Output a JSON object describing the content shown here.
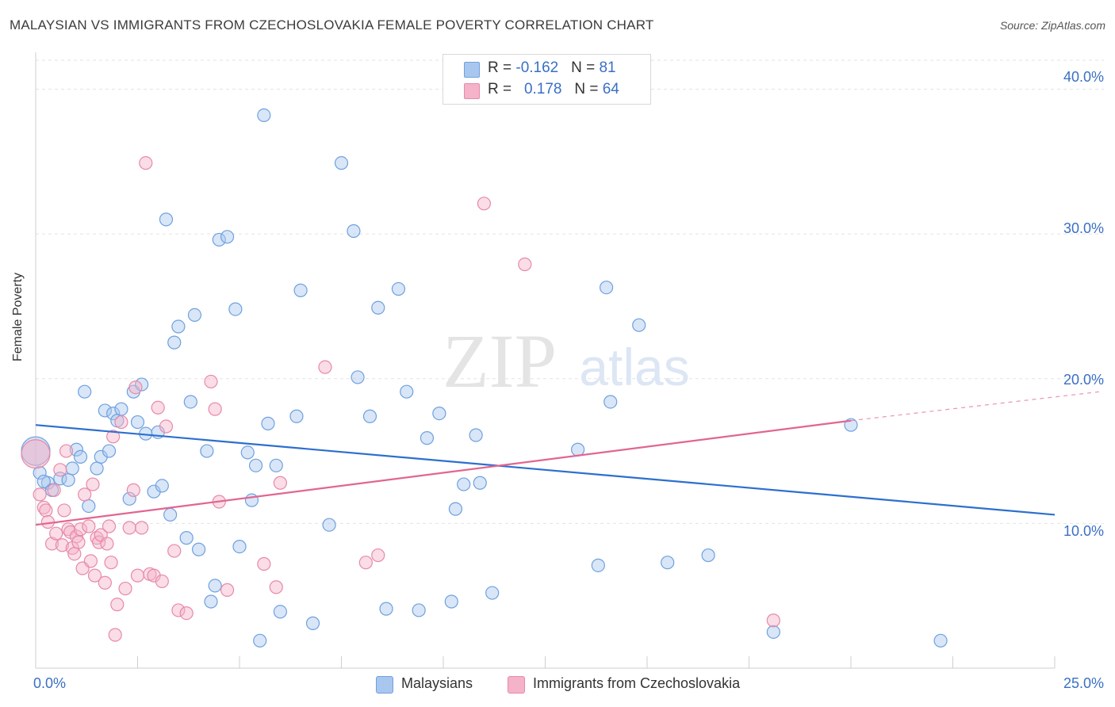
{
  "title": "MALAYSIAN VS IMMIGRANTS FROM CZECHOSLOVAKIA FEMALE POVERTY CORRELATION CHART",
  "source": "Source: ZipAtlas.com",
  "watermark": {
    "zip": "ZIP",
    "atlas": "atlas"
  },
  "legend_box": {
    "rows": [
      {
        "r_label": "R = ",
        "r_value": "-0.162",
        "n_label": "N = ",
        "n_value": "81",
        "color": "#a9c7ee"
      },
      {
        "r_label": "R = ",
        "r_value": "0.178",
        "n_label": "N = ",
        "n_value": "64",
        "color": "#f4b3c8"
      }
    ]
  },
  "bottom_legend": [
    {
      "label": "Malaysians",
      "color": "#a9c7ee"
    },
    {
      "label": "Immigrants from Czechoslovakia",
      "color": "#f4b3c8"
    }
  ],
  "chart_data": {
    "type": "scatter",
    "title": "MALAYSIAN VS IMMIGRANTS FROM CZECHOSLOVAKIA FEMALE POVERTY CORRELATION CHART",
    "xlabel": "",
    "ylabel": "Female Poverty",
    "xlim": [
      0,
      25
    ],
    "ylim": [
      0,
      42
    ],
    "x_tick_labels": [
      "0.0%",
      "25.0%"
    ],
    "y_tick_labels": [
      "10.0%",
      "20.0%",
      "30.0%",
      "40.0%"
    ],
    "y_ticks": [
      10,
      20,
      30,
      40
    ],
    "grid": true,
    "legend_position": "top-center",
    "series": [
      {
        "name": "Malaysians",
        "color": "#6fa0e0",
        "fill": "#a9c7ee",
        "trend": {
          "x": [
            0,
            25
          ],
          "y": [
            16.8,
            10.6
          ],
          "color": "#2d6fcf"
        },
        "points": [
          [
            0.0,
            15.0
          ],
          [
            0.1,
            13.5
          ],
          [
            0.3,
            12.8
          ],
          [
            0.4,
            12.3
          ],
          [
            0.6,
            13.1
          ],
          [
            0.8,
            13.0
          ],
          [
            0.9,
            13.8
          ],
          [
            1.0,
            15.1
          ],
          [
            1.1,
            14.6
          ],
          [
            1.2,
            19.1
          ],
          [
            1.3,
            11.2
          ],
          [
            1.5,
            13.8
          ],
          [
            1.6,
            14.6
          ],
          [
            1.7,
            17.8
          ],
          [
            1.8,
            15.0
          ],
          [
            1.9,
            17.6
          ],
          [
            2.0,
            17.1
          ],
          [
            2.1,
            17.9
          ],
          [
            2.3,
            11.7
          ],
          [
            2.4,
            19.1
          ],
          [
            2.5,
            17.0
          ],
          [
            2.6,
            19.6
          ],
          [
            2.7,
            16.2
          ],
          [
            2.9,
            12.2
          ],
          [
            3.0,
            16.3
          ],
          [
            3.1,
            12.6
          ],
          [
            3.2,
            31.0
          ],
          [
            3.3,
            10.6
          ],
          [
            3.4,
            22.5
          ],
          [
            3.5,
            23.6
          ],
          [
            3.7,
            9.0
          ],
          [
            3.8,
            18.4
          ],
          [
            3.9,
            24.4
          ],
          [
            4.0,
            8.2
          ],
          [
            4.2,
            15.0
          ],
          [
            4.3,
            4.6
          ],
          [
            4.4,
            5.7
          ],
          [
            4.5,
            29.6
          ],
          [
            4.7,
            29.8
          ],
          [
            4.9,
            24.8
          ],
          [
            5.0,
            8.4
          ],
          [
            5.2,
            14.9
          ],
          [
            5.3,
            11.6
          ],
          [
            5.4,
            14.0
          ],
          [
            5.5,
            1.9
          ],
          [
            5.6,
            38.2
          ],
          [
            5.7,
            16.9
          ],
          [
            5.9,
            14.0
          ],
          [
            6.0,
            3.9
          ],
          [
            6.4,
            17.4
          ],
          [
            6.5,
            26.1
          ],
          [
            6.8,
            3.1
          ],
          [
            7.2,
            9.9
          ],
          [
            7.5,
            34.9
          ],
          [
            7.8,
            30.2
          ],
          [
            7.9,
            20.1
          ],
          [
            8.2,
            17.4
          ],
          [
            8.4,
            24.9
          ],
          [
            8.6,
            4.1
          ],
          [
            8.9,
            26.2
          ],
          [
            9.1,
            19.1
          ],
          [
            9.4,
            4.0
          ],
          [
            9.6,
            15.9
          ],
          [
            9.9,
            17.6
          ],
          [
            10.2,
            4.6
          ],
          [
            10.3,
            11.0
          ],
          [
            10.5,
            12.7
          ],
          [
            10.8,
            16.1
          ],
          [
            10.9,
            12.8
          ],
          [
            11.2,
            5.2
          ],
          [
            13.3,
            15.1
          ],
          [
            13.8,
            7.1
          ],
          [
            14.0,
            26.3
          ],
          [
            14.1,
            18.4
          ],
          [
            14.8,
            23.7
          ],
          [
            15.5,
            7.3
          ],
          [
            16.5,
            7.8
          ],
          [
            18.1,
            2.5
          ],
          [
            20.0,
            16.8
          ],
          [
            22.2,
            1.9
          ],
          [
            0.2,
            12.9
          ]
        ]
      },
      {
        "name": "Immigrants from Czechoslovakia",
        "color": "#e889a8",
        "fill": "#f4b3c8",
        "trend": {
          "x": [
            0,
            20.0
          ],
          "y": [
            9.9,
            17.1
          ],
          "color": "#e26591",
          "dashed_extension": {
            "x": [
              20.0,
              25
            ],
            "y": [
              17.1,
              18.9
            ]
          }
        },
        "points": [
          [
            0.0,
            14.8
          ],
          [
            0.1,
            12.0
          ],
          [
            0.2,
            11.1
          ],
          [
            0.25,
            10.9
          ],
          [
            0.3,
            10.1
          ],
          [
            0.4,
            8.6
          ],
          [
            0.45,
            12.3
          ],
          [
            0.5,
            9.3
          ],
          [
            0.6,
            13.7
          ],
          [
            0.65,
            8.5
          ],
          [
            0.7,
            10.9
          ],
          [
            0.75,
            15.0
          ],
          [
            0.8,
            9.6
          ],
          [
            0.85,
            9.4
          ],
          [
            0.9,
            8.3
          ],
          [
            0.95,
            7.9
          ],
          [
            1.0,
            9.1
          ],
          [
            1.05,
            8.7
          ],
          [
            1.1,
            9.6
          ],
          [
            1.15,
            6.9
          ],
          [
            1.2,
            12.0
          ],
          [
            1.3,
            9.8
          ],
          [
            1.35,
            7.4
          ],
          [
            1.4,
            12.7
          ],
          [
            1.45,
            6.4
          ],
          [
            1.5,
            9.0
          ],
          [
            1.55,
            8.7
          ],
          [
            1.6,
            9.2
          ],
          [
            1.7,
            5.9
          ],
          [
            1.75,
            8.6
          ],
          [
            1.8,
            9.8
          ],
          [
            1.85,
            7.3
          ],
          [
            1.9,
            16.0
          ],
          [
            1.95,
            2.3
          ],
          [
            2.0,
            4.4
          ],
          [
            2.1,
            17.0
          ],
          [
            2.2,
            5.5
          ],
          [
            2.3,
            9.7
          ],
          [
            2.4,
            12.3
          ],
          [
            2.45,
            19.4
          ],
          [
            2.5,
            6.4
          ],
          [
            2.6,
            9.7
          ],
          [
            2.7,
            34.9
          ],
          [
            2.8,
            6.5
          ],
          [
            2.9,
            6.4
          ],
          [
            3.0,
            18.0
          ],
          [
            3.1,
            6.0
          ],
          [
            3.2,
            16.7
          ],
          [
            3.4,
            8.1
          ],
          [
            3.5,
            4.0
          ],
          [
            3.7,
            3.8
          ],
          [
            4.3,
            19.8
          ],
          [
            4.4,
            17.9
          ],
          [
            4.5,
            11.5
          ],
          [
            4.7,
            5.4
          ],
          [
            5.6,
            7.2
          ],
          [
            5.9,
            5.6
          ],
          [
            6.0,
            12.8
          ],
          [
            7.1,
            20.8
          ],
          [
            8.1,
            7.3
          ],
          [
            8.4,
            7.8
          ],
          [
            11.0,
            32.1
          ],
          [
            12.0,
            27.9
          ],
          [
            18.1,
            3.3
          ]
        ]
      }
    ]
  }
}
